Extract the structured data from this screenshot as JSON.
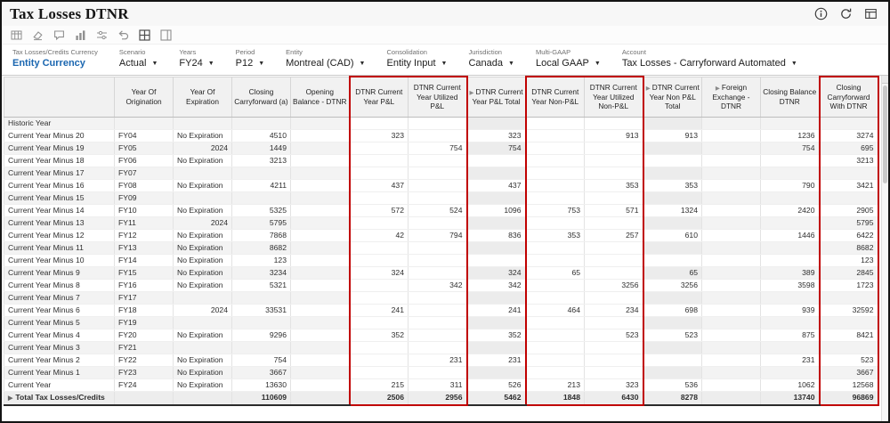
{
  "header": {
    "title": "Tax Losses DTNR",
    "icons": [
      "info-icon",
      "refresh-icon",
      "save-data-icon"
    ]
  },
  "toolbar": {
    "icons": [
      "table-format-icon",
      "clear-formatting-icon",
      "comments-icon",
      "chart-icon",
      "adjust-icon",
      "undo-icon",
      "freeze-pane-icon",
      "split-grid-icon"
    ]
  },
  "colors": {
    "highlight_border": "#c00000",
    "link": "#1a66b0"
  },
  "pov": {
    "items": [
      {
        "label": "Tax Losses/Credits Currency",
        "value": "Entity Currency",
        "type": "link"
      },
      {
        "label": "Scenario",
        "value": "Actual",
        "type": "dropdown"
      },
      {
        "label": "Years",
        "value": "FY24",
        "type": "dropdown"
      },
      {
        "label": "Period",
        "value": "P12",
        "type": "dropdown"
      },
      {
        "label": "Entity",
        "value": "Montreal (CAD)",
        "type": "dropdown"
      },
      {
        "label": "Consolidation",
        "value": "Entity Input",
        "type": "dropdown"
      },
      {
        "label": "Jurisdiction",
        "value": "Canada",
        "type": "dropdown"
      },
      {
        "label": "Multi-GAAP",
        "value": "Local GAAP",
        "type": "dropdown"
      },
      {
        "label": "Account",
        "value": "Tax Losses - Carryforward Automated",
        "type": "dropdown"
      }
    ]
  },
  "grid": {
    "columns": [
      {
        "key": "year_of_origination",
        "label": "Year Of Origination"
      },
      {
        "key": "year_of_expiration",
        "label": "Year Of Expiration"
      },
      {
        "key": "closing_carryforward_a",
        "label": "Closing Carryforward (a)"
      },
      {
        "key": "opening_balance_dtnr",
        "label": "Opening Balance - DTNR"
      },
      {
        "key": "dtnr_current_year_pl",
        "label": "DTNR Current Year P&L",
        "group": "pl"
      },
      {
        "key": "dtnr_current_year_utilized_pl",
        "label": "DTNR Current Year Utilized P&L",
        "group": "pl"
      },
      {
        "key": "dtnr_current_year_pl_total",
        "label": "DTNR Current Year P&L Total",
        "total": true,
        "emphasis": true,
        "expander": true
      },
      {
        "key": "dtnr_current_year_nonpl",
        "label": "DTNR Current Year Non-P&L",
        "group": "nonpl"
      },
      {
        "key": "dtnr_current_year_utilized_nonpl",
        "label": "DTNR Current Year Utilized Non-P&L",
        "group": "nonpl"
      },
      {
        "key": "dtnr_current_year_nonpl_total",
        "label": "DTNR Current Year Non P&L Total",
        "total": true,
        "emphasis": true,
        "expander": true
      },
      {
        "key": "foreign_exchange_dtnr",
        "label": "Foreign Exchange - DTNR",
        "emphasis": true,
        "expander": true
      },
      {
        "key": "closing_balance_dtnr",
        "label": "Closing Balance DTNR"
      },
      {
        "key": "closing_carryforward_with_dtnr",
        "label": "Closing Carryforward With DTNR",
        "group": "cf",
        "emphasis": true
      }
    ],
    "rows": [
      {
        "label": "Historic Year",
        "cells": [
          "",
          "",
          "",
          "",
          "",
          "",
          "",
          "",
          "",
          "",
          "",
          "",
          ""
        ]
      },
      {
        "label": "Current Year Minus 20",
        "cells": [
          "FY04",
          "No Expiration",
          "4510",
          "",
          "323",
          "",
          "323",
          "",
          "913",
          "913",
          "",
          "1236",
          "3274"
        ]
      },
      {
        "label": "Current Year Minus 19",
        "cells": [
          "FY05",
          "2024",
          "1449",
          "",
          "",
          "754",
          "754",
          "",
          "",
          "",
          "",
          "754",
          "695"
        ]
      },
      {
        "label": "Current Year Minus 18",
        "cells": [
          "FY06",
          "No Expiration",
          "3213",
          "",
          "",
          "",
          "",
          "",
          "",
          "",
          "",
          "",
          "3213"
        ]
      },
      {
        "label": "Current Year Minus 17",
        "cells": [
          "FY07",
          "",
          "",
          "",
          "",
          "",
          "",
          "",
          "",
          "",
          "",
          "",
          ""
        ]
      },
      {
        "label": "Current Year Minus 16",
        "cells": [
          "FY08",
          "No Expiration",
          "4211",
          "",
          "437",
          "",
          "437",
          "",
          "353",
          "353",
          "",
          "790",
          "3421"
        ]
      },
      {
        "label": "Current Year Minus 15",
        "cells": [
          "FY09",
          "",
          "",
          "",
          "",
          "",
          "",
          "",
          "",
          "",
          "",
          "",
          ""
        ]
      },
      {
        "label": "Current Year Minus 14",
        "cells": [
          "FY10",
          "No Expiration",
          "5325",
          "",
          "572",
          "524",
          "1096",
          "753",
          "571",
          "1324",
          "",
          "2420",
          "2905"
        ]
      },
      {
        "label": "Current Year Minus 13",
        "cells": [
          "FY11",
          "2024",
          "5795",
          "",
          "",
          "",
          "",
          "",
          "",
          "",
          "",
          "",
          "5795"
        ]
      },
      {
        "label": "Current Year Minus 12",
        "cells": [
          "FY12",
          "No Expiration",
          "7868",
          "",
          "42",
          "794",
          "836",
          "353",
          "257",
          "610",
          "",
          "1446",
          "6422"
        ]
      },
      {
        "label": "Current Year Minus 11",
        "cells": [
          "FY13",
          "No Expiration",
          "8682",
          "",
          "",
          "",
          "",
          "",
          "",
          "",
          "",
          "",
          "8682"
        ]
      },
      {
        "label": "Current Year Minus 10",
        "cells": [
          "FY14",
          "No Expiration",
          "123",
          "",
          "",
          "",
          "",
          "",
          "",
          "",
          "",
          "",
          "123"
        ]
      },
      {
        "label": "Current Year Minus 9",
        "cells": [
          "FY15",
          "No Expiration",
          "3234",
          "",
          "324",
          "",
          "324",
          "65",
          "",
          "65",
          "",
          "389",
          "2845"
        ]
      },
      {
        "label": "Current Year Minus 8",
        "cells": [
          "FY16",
          "No Expiration",
          "5321",
          "",
          "",
          "342",
          "342",
          "",
          "3256",
          "3256",
          "",
          "3598",
          "1723"
        ]
      },
      {
        "label": "Current Year Minus 7",
        "cells": [
          "FY17",
          "",
          "",
          "",
          "",
          "",
          "",
          "",
          "",
          "",
          "",
          "",
          ""
        ]
      },
      {
        "label": "Current Year Minus 6",
        "cells": [
          "FY18",
          "2024",
          "33531",
          "",
          "241",
          "",
          "241",
          "464",
          "234",
          "698",
          "",
          "939",
          "32592"
        ]
      },
      {
        "label": "Current Year Minus 5",
        "cells": [
          "FY19",
          "",
          "",
          "",
          "",
          "",
          "",
          "",
          "",
          "",
          "",
          "",
          ""
        ]
      },
      {
        "label": "Current Year Minus 4",
        "cells": [
          "FY20",
          "No Expiration",
          "9296",
          "",
          "352",
          "",
          "352",
          "",
          "523",
          "523",
          "",
          "875",
          "8421"
        ]
      },
      {
        "label": "Current Year Minus 3",
        "cells": [
          "FY21",
          "",
          "",
          "",
          "",
          "",
          "",
          "",
          "",
          "",
          "",
          "",
          ""
        ]
      },
      {
        "label": "Current Year Minus 2",
        "cells": [
          "FY22",
          "No Expiration",
          "754",
          "",
          "",
          "231",
          "231",
          "",
          "",
          "",
          "",
          "231",
          "523"
        ]
      },
      {
        "label": "Current Year Minus 1",
        "cells": [
          "FY23",
          "No Expiration",
          "3667",
          "",
          "",
          "",
          "",
          "",
          "",
          "",
          "",
          "",
          "3667"
        ]
      },
      {
        "label": "Current Year",
        "cells": [
          "FY24",
          "No Expiration",
          "13630",
          "",
          "215",
          "311",
          "526",
          "213",
          "323",
          "536",
          "",
          "1062",
          "12568"
        ]
      }
    ],
    "total_row": {
      "label": "Total Tax Losses/Credits",
      "cells": [
        "",
        "",
        "110609",
        "",
        "2506",
        "2956",
        "5462",
        "1848",
        "6430",
        "8278",
        "",
        "13740",
        "96869"
      ]
    }
  }
}
